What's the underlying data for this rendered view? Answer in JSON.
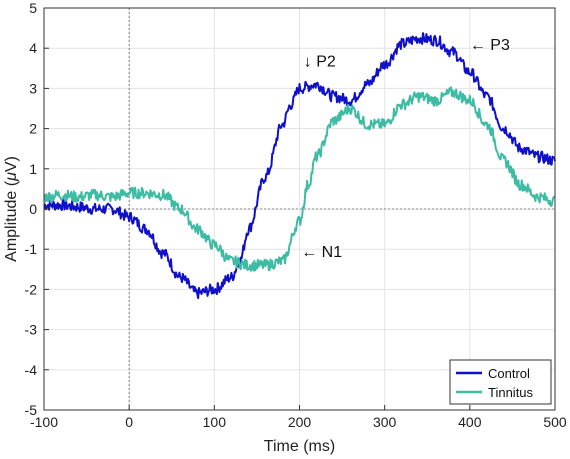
{
  "chart_data": {
    "type": "line",
    "title": "",
    "xlabel": "Time (ms)",
    "ylabel": "Amplitude (",
    "ylabel_unit_greek": "μ",
    "ylabel_unit_tail": "V)",
    "xlim": [
      -100,
      500
    ],
    "ylim": [
      -5,
      5
    ],
    "x_ticks": [
      -100,
      0,
      100,
      200,
      300,
      400,
      500
    ],
    "y_ticks": [
      -5,
      -4,
      -3,
      -2,
      -1,
      0,
      1,
      2,
      3,
      4,
      5
    ],
    "x_tick_labels": [
      "-100",
      "0",
      "100",
      "200",
      "300",
      "400",
      "500"
    ],
    "y_tick_labels": [
      "-5",
      "-4",
      "-3",
      "-2",
      "-1",
      "0",
      "1",
      "2",
      "3",
      "4",
      "5"
    ],
    "grid": true,
    "reference_lines": {
      "x": 0,
      "y": 0,
      "style": "dotted"
    },
    "legend_position": "bottom-right",
    "series": [
      {
        "name": "Control",
        "color": "#1010c8",
        "x": [
          -100,
          -80,
          -60,
          -40,
          -20,
          0,
          20,
          40,
          60,
          80,
          100,
          120,
          130,
          140,
          160,
          180,
          190,
          200,
          220,
          240,
          260,
          280,
          300,
          320,
          340,
          360,
          380,
          400,
          420,
          440,
          460,
          480,
          500
        ],
        "y": [
          0.1,
          0.1,
          0.05,
          0.0,
          0.0,
          -0.2,
          -0.5,
          -1.1,
          -1.7,
          -2.1,
          -2.0,
          -1.7,
          -1.3,
          -0.5,
          0.8,
          2.1,
          2.6,
          3.0,
          3.1,
          2.8,
          2.7,
          3.1,
          3.6,
          4.1,
          4.25,
          4.2,
          3.9,
          3.4,
          2.8,
          2.0,
          1.5,
          1.3,
          1.2
        ]
      },
      {
        "name": "Tinnitus",
        "color": "#3dbba3",
        "x": [
          -100,
          -80,
          -60,
          -40,
          -20,
          0,
          20,
          40,
          60,
          80,
          100,
          120,
          140,
          160,
          180,
          200,
          210,
          220,
          240,
          260,
          280,
          300,
          320,
          340,
          360,
          380,
          400,
          420,
          440,
          460,
          480,
          500
        ],
        "y": [
          0.3,
          0.35,
          0.3,
          0.35,
          0.3,
          0.4,
          0.4,
          0.35,
          0.0,
          -0.5,
          -0.9,
          -1.3,
          -1.4,
          -1.4,
          -1.3,
          -0.3,
          0.6,
          1.3,
          2.2,
          2.5,
          2.1,
          2.1,
          2.6,
          2.8,
          2.7,
          2.9,
          2.7,
          2.1,
          1.2,
          0.6,
          0.3,
          0.2
        ]
      }
    ],
    "annotations": [
      {
        "text": "P2",
        "arrow": "↓",
        "arrow_side": "left",
        "x": 205,
        "y": 3.55
      },
      {
        "text": "P3",
        "arrow": "←",
        "arrow_side": "left",
        "x": 400,
        "y": 3.95
      },
      {
        "text": "N1",
        "arrow": "←",
        "arrow_side": "left",
        "x": 202,
        "y": -1.2
      }
    ]
  }
}
